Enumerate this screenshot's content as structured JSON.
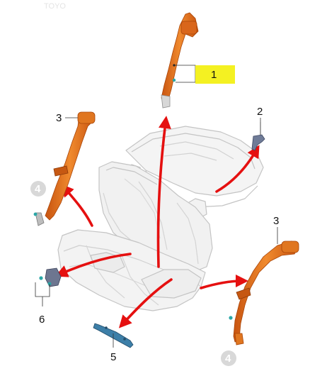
{
  "watermark": "TOYO",
  "callouts": {
    "c1": "1",
    "c2": "2",
    "c3_left": "3",
    "c3_right": "3",
    "c4_left": "4",
    "c4_right": "4",
    "c5": "5",
    "c6": "6"
  },
  "colors": {
    "belt": "#e8701f",
    "belt_dark": "#b84a0c",
    "arrow": "#e51010",
    "highlight": "#f4f122",
    "seat_outline": "#c4c4c4",
    "metal_blue": "#3d7fa8",
    "ghost_badge": "#d8d8d8"
  },
  "icons": [
    "seat-belt-icon",
    "seat-assembly-icon",
    "arrow-icon",
    "anchor-bracket-icon",
    "buckle-icon"
  ]
}
